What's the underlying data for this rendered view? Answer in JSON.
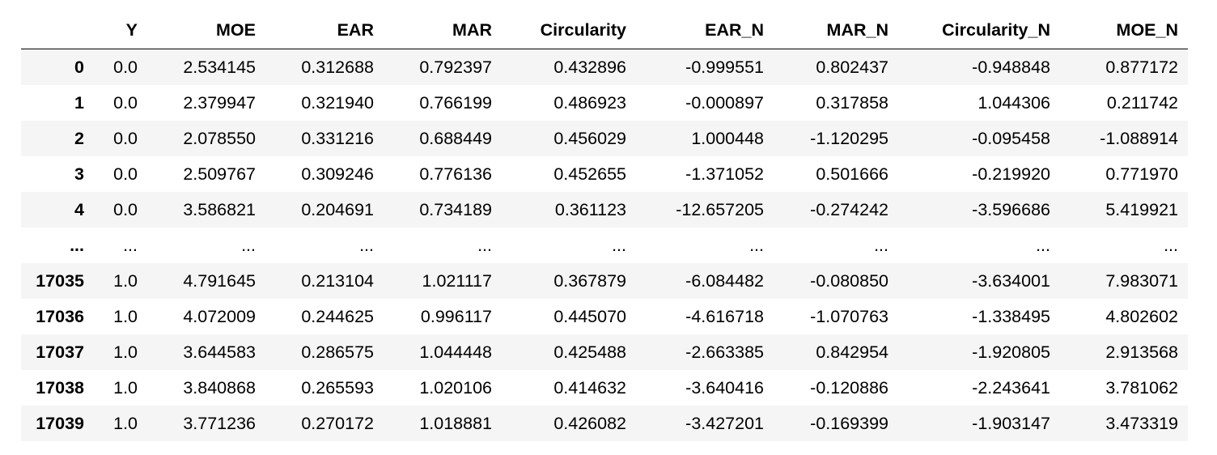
{
  "table": {
    "columns": [
      "",
      "Y",
      "MOE",
      "EAR",
      "MAR",
      "Circularity",
      "EAR_N",
      "MAR_N",
      "Circularity_N",
      "MOE_N"
    ],
    "rows": [
      [
        "0",
        "0.0",
        "2.534145",
        "0.312688",
        "0.792397",
        "0.432896",
        "-0.999551",
        "0.802437",
        "-0.948848",
        "0.877172"
      ],
      [
        "1",
        "0.0",
        "2.379947",
        "0.321940",
        "0.766199",
        "0.486923",
        "-0.000897",
        "0.317858",
        "1.044306",
        "0.211742"
      ],
      [
        "2",
        "0.0",
        "2.078550",
        "0.331216",
        "0.688449",
        "0.456029",
        "1.000448",
        "-1.120295",
        "-0.095458",
        "-1.088914"
      ],
      [
        "3",
        "0.0",
        "2.509767",
        "0.309246",
        "0.776136",
        "0.452655",
        "-1.371052",
        "0.501666",
        "-0.219920",
        "0.771970"
      ],
      [
        "4",
        "0.0",
        "3.586821",
        "0.204691",
        "0.734189",
        "0.361123",
        "-12.657205",
        "-0.274242",
        "-3.596686",
        "5.419921"
      ],
      [
        "...",
        "...",
        "...",
        "...",
        "...",
        "...",
        "...",
        "...",
        "...",
        "..."
      ],
      [
        "17035",
        "1.0",
        "4.791645",
        "0.213104",
        "1.021117",
        "0.367879",
        "-6.084482",
        "-0.080850",
        "-3.634001",
        "7.983071"
      ],
      [
        "17036",
        "1.0",
        "4.072009",
        "0.244625",
        "0.996117",
        "0.445070",
        "-4.616718",
        "-1.070763",
        "-1.338495",
        "4.802602"
      ],
      [
        "17037",
        "1.0",
        "3.644583",
        "0.286575",
        "1.044448",
        "0.425488",
        "-2.663385",
        "0.842954",
        "-1.920805",
        "2.913568"
      ],
      [
        "17038",
        "1.0",
        "3.840868",
        "0.265593",
        "1.020106",
        "0.414632",
        "-3.640416",
        "-0.120886",
        "-2.243641",
        "3.781062"
      ],
      [
        "17039",
        "1.0",
        "3.771236",
        "0.270172",
        "1.018881",
        "0.426082",
        "-3.427201",
        "-0.169399",
        "-1.903147",
        "3.473319"
      ]
    ]
  }
}
